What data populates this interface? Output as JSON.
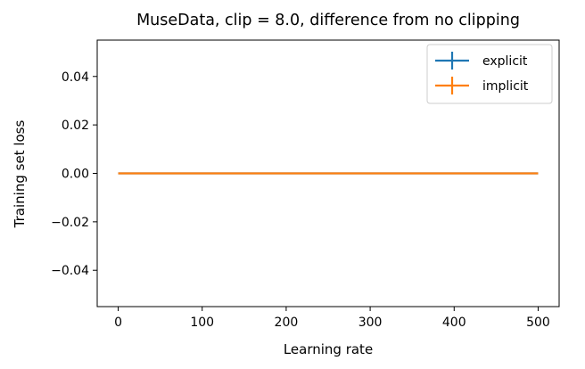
{
  "chart_data": {
    "type": "line",
    "title": "MuseData, clip = 8.0, difference from no clipping",
    "xlabel": "Learning rate",
    "ylabel": "Training set loss",
    "xlim": [
      -25,
      525
    ],
    "ylim": [
      -0.055,
      0.055
    ],
    "xticks": [
      0,
      100,
      200,
      300,
      400,
      500
    ],
    "xtick_labels": [
      "0",
      "100",
      "200",
      "300",
      "400",
      "500"
    ],
    "yticks": [
      -0.04,
      -0.02,
      0.0,
      0.02,
      0.04
    ],
    "ytick_labels": [
      "−0.04",
      "−0.02",
      "0.00",
      "0.02",
      "0.04"
    ],
    "grid": false,
    "legend_position": "top-right",
    "series": [
      {
        "name": "explicit",
        "color": "#1f77b4",
        "x": [
          0,
          500
        ],
        "y": [
          0.0,
          0.0
        ]
      },
      {
        "name": "implicit",
        "color": "#ff7f0e",
        "x": [
          0,
          500
        ],
        "y": [
          0.0,
          0.0
        ]
      }
    ]
  }
}
